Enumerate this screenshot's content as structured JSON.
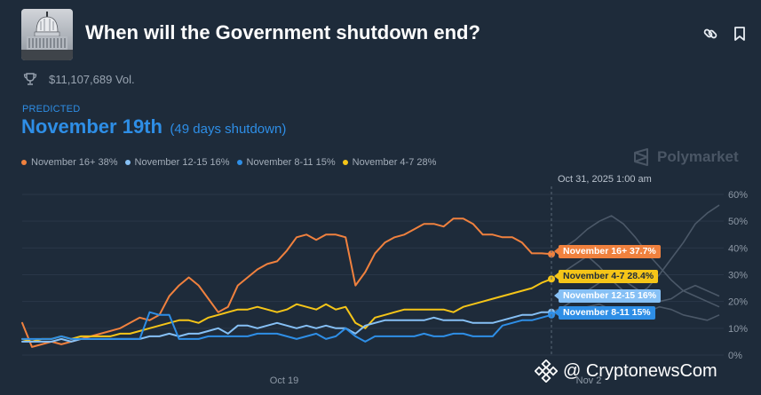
{
  "header": {
    "title": "When will the Government shutdown end?",
    "volume": "$11,107,689 Vol."
  },
  "prediction": {
    "label": "PREDICTED",
    "value": "November 19th",
    "sub": "(49 days shutdown)"
  },
  "legend": [
    {
      "label": "November 16+ 38%",
      "color": "#f0813e"
    },
    {
      "label": "November 12-15 16%",
      "color": "#86c0f5"
    },
    {
      "label": "November 8-11 15%",
      "color": "#2e8ee6"
    },
    {
      "label": "November 4-7 28%",
      "color": "#f5c518"
    }
  ],
  "brand": "Polymarket",
  "hover_time": "Oct 31, 2025 1:00 am",
  "tags": [
    {
      "text": "November 16+ 37.7%",
      "bg": "#f0813e",
      "fg": "#ffffff"
    },
    {
      "text": "November 4-7 28.4%",
      "bg": "#f5c518",
      "fg": "#1e2b3a"
    },
    {
      "text": "November 12-15 16%",
      "bg": "#86c0f5",
      "fg": "#ffffff"
    },
    {
      "text": "November 8-11 15%",
      "bg": "#2e8ee6",
      "fg": "#ffffff"
    }
  ],
  "watermark": "@ CryptonewsCom",
  "chart_data": {
    "type": "line",
    "x_tick_labels": [
      "Oct 19",
      "Nov 2"
    ],
    "y_tick_labels": [
      "60%",
      "50%",
      "40%",
      "30%",
      "20%",
      "10%",
      "0%"
    ],
    "ylim": [
      0,
      60
    ],
    "grid": true,
    "series": [
      {
        "name": "November 16+",
        "color": "#f0813e",
        "values": [
          12,
          3,
          4,
          5,
          4,
          5,
          6,
          7,
          8,
          9,
          10,
          12,
          14,
          13,
          15,
          22,
          26,
          29,
          26,
          21,
          16,
          18,
          26,
          29,
          32,
          34,
          35,
          39,
          44,
          45,
          43,
          45,
          45,
          44,
          26,
          31,
          38,
          42,
          44,
          45,
          47,
          49,
          49,
          48,
          51,
          51,
          49,
          45,
          45,
          44,
          44,
          42,
          38,
          38,
          37.7
        ]
      },
      {
        "name": "November 4-7",
        "color": "#f5c518",
        "values": [
          6,
          5,
          6,
          6,
          7,
          6,
          7,
          7,
          7,
          7,
          8,
          8,
          9,
          10,
          11,
          12,
          13,
          13,
          12,
          14,
          15,
          16,
          17,
          17,
          18,
          17,
          16,
          17,
          19,
          18,
          17,
          19,
          17,
          18,
          12,
          10,
          14,
          15,
          16,
          17,
          17,
          17,
          17,
          17,
          16,
          18,
          19,
          20,
          21,
          22,
          23,
          24,
          25,
          27,
          28.4
        ]
      },
      {
        "name": "November 12-15",
        "color": "#86c0f5",
        "values": [
          5,
          5,
          5,
          5,
          6,
          5,
          6,
          6,
          6,
          6,
          6,
          6,
          6,
          7,
          7,
          8,
          7,
          8,
          8,
          9,
          10,
          8,
          11,
          11,
          10,
          11,
          12,
          11,
          10,
          11,
          10,
          11,
          10,
          10,
          8,
          11,
          12,
          13,
          13,
          13,
          13,
          13,
          14,
          13,
          13,
          13,
          12,
          12,
          12,
          13,
          14,
          15,
          15,
          16,
          16
        ]
      },
      {
        "name": "November 8-11",
        "color": "#2e8ee6",
        "values": [
          6,
          6,
          6,
          6,
          7,
          6,
          6,
          6,
          6,
          6,
          6,
          6,
          6,
          16,
          15,
          15,
          6,
          6,
          6,
          7,
          7,
          7,
          7,
          7,
          8,
          8,
          8,
          7,
          6,
          7,
          8,
          6,
          7,
          10,
          7,
          5,
          7,
          7,
          7,
          7,
          7,
          8,
          7,
          7,
          8,
          8,
          7,
          7,
          7,
          11,
          12,
          13,
          13,
          14,
          15
        ]
      }
    ]
  }
}
